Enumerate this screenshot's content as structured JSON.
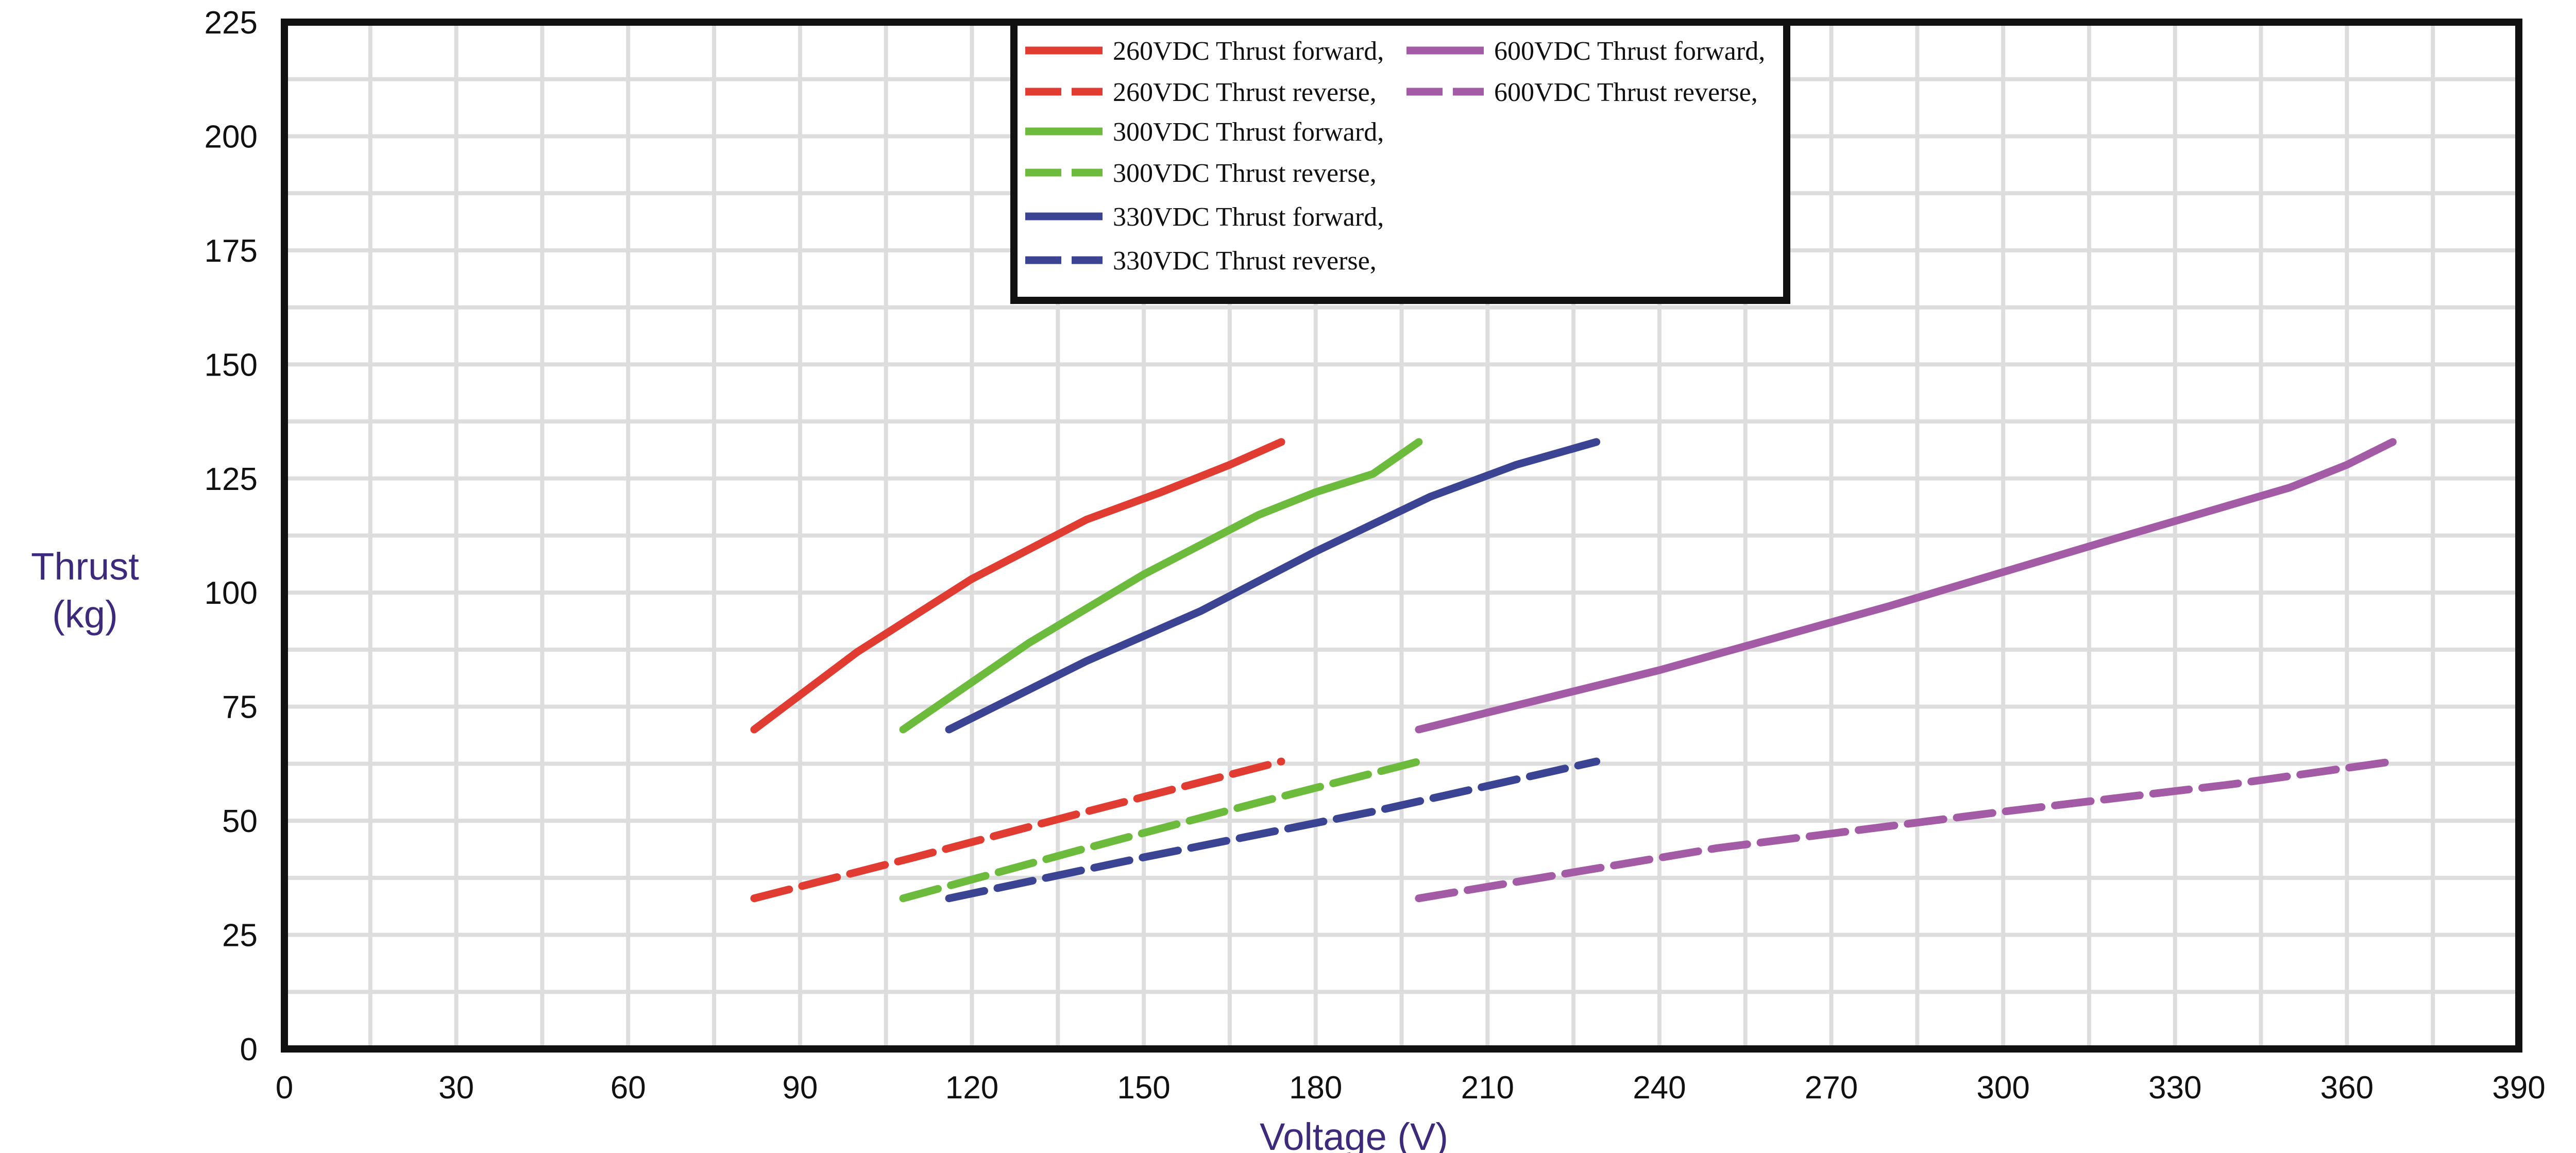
{
  "chart_data": {
    "type": "line",
    "title": "",
    "xlabel": "Voltage (V)",
    "ylabel_lines": [
      "Thrust",
      "(kg)"
    ],
    "xlim": [
      0,
      390
    ],
    "ylim": [
      0,
      225
    ],
    "x_ticks": [
      0,
      30,
      60,
      90,
      120,
      150,
      180,
      210,
      240,
      270,
      300,
      330,
      360,
      390
    ],
    "y_ticks": [
      0,
      25,
      50,
      75,
      100,
      125,
      150,
      175,
      200,
      225
    ],
    "x_minor_step": 15,
    "y_minor_step": 12.5,
    "grid": true,
    "legend_position": "top-center",
    "series": [
      {
        "name": "260VDC Thrust forward,",
        "color": "#e03c31",
        "dashed": false,
        "x": [
          82,
          100,
          120,
          140,
          153,
          165,
          174
        ],
        "y": [
          70,
          87,
          103,
          116,
          122,
          128,
          133
        ]
      },
      {
        "name": "260VDC Thrust reverse,",
        "color": "#e03c31",
        "dashed": true,
        "x": [
          82,
          110,
          140,
          174
        ],
        "y": [
          33,
          42,
          52,
          63
        ]
      },
      {
        "name": "300VDC Thrust forward,",
        "color": "#6cbb3c",
        "dashed": false,
        "x": [
          108,
          130,
          150,
          170,
          180,
          190,
          198
        ],
        "y": [
          70,
          89,
          104,
          117,
          122,
          126,
          133
        ]
      },
      {
        "name": "300VDC Thrust reverse,",
        "color": "#6cbb3c",
        "dashed": true,
        "x": [
          108,
          140,
          170,
          198
        ],
        "y": [
          33,
          44,
          54,
          63
        ]
      },
      {
        "name": "330VDC Thrust forward,",
        "color": "#3a4493",
        "dashed": false,
        "x": [
          116,
          140,
          160,
          180,
          200,
          215,
          229
        ],
        "y": [
          70,
          85,
          96,
          109,
          121,
          128,
          133
        ]
      },
      {
        "name": "330VDC Thrust reverse,",
        "color": "#3a4493",
        "dashed": true,
        "x": [
          116,
          150,
          190,
          229
        ],
        "y": [
          33,
          42,
          52,
          63
        ]
      },
      {
        "name": "600VDC Thrust forward,",
        "color": "#a45ba5",
        "dashed": false,
        "x": [
          198,
          240,
          280,
          320,
          350,
          360,
          368
        ],
        "y": [
          70,
          83,
          97,
          112,
          123,
          128,
          133
        ]
      },
      {
        "name": "600VDC Thrust reverse,",
        "color": "#a45ba5",
        "dashed": true,
        "x": [
          198,
          250,
          300,
          340,
          368
        ],
        "y": [
          33,
          44,
          52,
          58,
          63
        ]
      }
    ]
  }
}
